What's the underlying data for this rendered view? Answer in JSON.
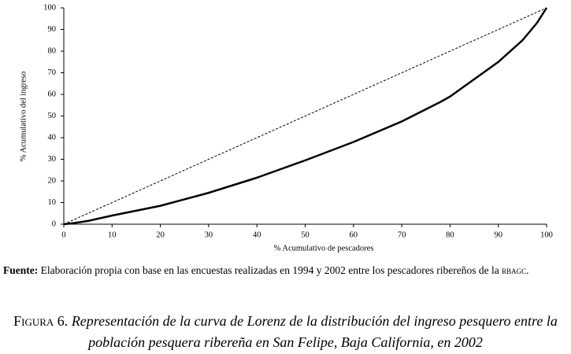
{
  "chart_data": {
    "type": "line",
    "xlabel": "% Acumulativo de pescadores",
    "ylabel": "% Acumulativo del ingreso",
    "xlim": [
      0,
      100
    ],
    "ylim": [
      0,
      100
    ],
    "xticks": [
      0,
      10,
      20,
      30,
      40,
      50,
      60,
      70,
      80,
      90,
      100
    ],
    "yticks": [
      0,
      10,
      20,
      30,
      40,
      50,
      60,
      70,
      80,
      90,
      100
    ],
    "grid": false,
    "series": [
      {
        "color": "#000000",
        "style": "solid",
        "x": [
          0,
          2,
          5,
          10,
          20,
          30,
          40,
          50,
          60,
          70,
          78,
          80,
          90,
          95,
          98,
          100
        ],
        "values": [
          0,
          0.5,
          1.5,
          4,
          8.5,
          14.5,
          21.5,
          29.5,
          38,
          47.5,
          56.5,
          59,
          75,
          85,
          93,
          100
        ]
      },
      {
        "color": "#000000",
        "style": "dashed",
        "x": [
          0,
          100
        ],
        "values": [
          0,
          100
        ]
      }
    ]
  },
  "source": {
    "label": "Fuente:",
    "text": "Elaboración propia con base en las encuestas realizadas en 1994 y 2002 entre los pescadores ribereños de la",
    "abbr": "rbagc",
    "end": "."
  },
  "caption": {
    "label": "Figura 6.",
    "text": "Representación de la curva de Lorenz de la distribución del ingreso pesquero entre la población pesquera ribereña en San Felipe, Baja California, en 2002"
  }
}
